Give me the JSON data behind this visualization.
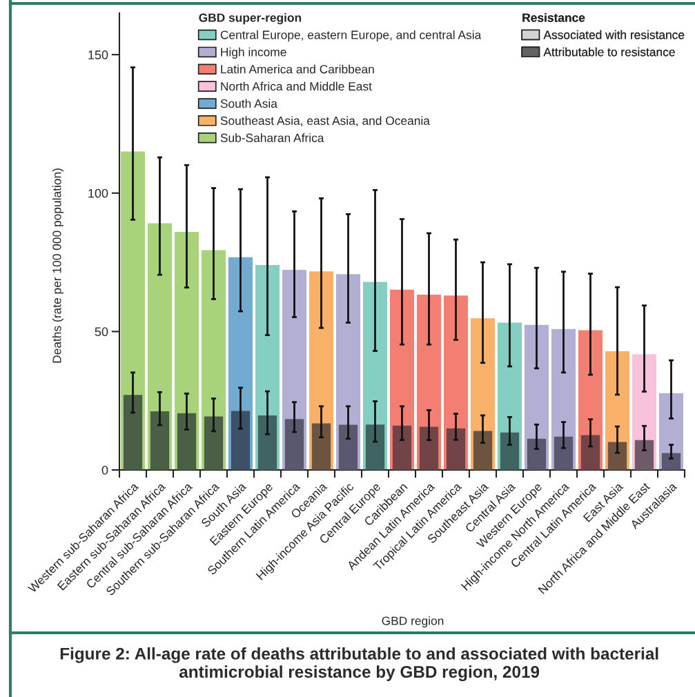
{
  "chart_data": {
    "type": "bar",
    "title": "Figure 2: All-age rate of deaths attributable to and associated with bacterial antimicrobial resistance by GBD region, 2019",
    "xlabel": "GBD region",
    "ylabel": "Deaths (rate per 100 000 population)",
    "legend_title": "GBD super-region",
    "annotations": [
      "Resistance"
    ],
    "legend": "top",
    "categories": [
      "Western sub-Saharan Africa",
      "Eastern sub-Saharan Africa",
      "Central sub-Saharan Africa",
      "Southern sub-Saharan Africa",
      "South Asia",
      "Eastern Europe",
      "Southern Latin America",
      "Oceania",
      "High-income Asia Pacific",
      "Central Europe",
      "Caribbean",
      "Andean Latin America",
      "Tropical Latin America",
      "Southeast Asia",
      "Central Asia",
      "Western Europe",
      "High-income North America",
      "Central Latin America",
      "East Asia",
      "North Africa and Middle East",
      "Australasia"
    ],
    "ylim": [
      0,
      165
    ],
    "yticks": [
      0,
      50,
      100,
      150
    ],
    "series": [
      {
        "name": "Central Europe, eastern Europe, and central Asia",
        "color": "#84cfc2",
        "values": [
          null,
          null,
          null,
          null,
          null,
          74.0,
          null,
          null,
          null,
          67.9,
          null,
          null,
          null,
          null,
          53.2,
          null,
          null,
          null,
          null,
          null,
          null
        ],
        "errors": [
          null,
          null,
          null,
          null,
          null,
          [
            48.7,
            105.7
          ],
          null,
          null,
          null,
          [
            43.0,
            101.1
          ],
          null,
          null,
          null,
          null,
          [
            37.4,
            74.3
          ],
          null,
          null,
          null,
          null,
          null,
          null
        ]
      },
      {
        "name": "High income",
        "color": "#b2afd5",
        "values": [
          null,
          null,
          null,
          null,
          null,
          null,
          72.3,
          null,
          70.7,
          null,
          null,
          null,
          null,
          null,
          null,
          52.4,
          50.9,
          null,
          null,
          null,
          27.7
        ],
        "errors": [
          null,
          null,
          null,
          null,
          null,
          null,
          [
            55.2,
            93.4
          ],
          null,
          [
            53.2,
            92.4
          ],
          null,
          null,
          null,
          null,
          null,
          null,
          [
            36.7,
            73.0
          ],
          [
            35.2,
            71.6
          ],
          null,
          null,
          null,
          [
            18.6,
            39.6
          ]
        ]
      },
      {
        "name": "Latin America and Caribbean",
        "color": "#f37f73",
        "values": [
          null,
          null,
          null,
          null,
          null,
          null,
          null,
          null,
          null,
          null,
          65.1,
          63.3,
          63.0,
          null,
          null,
          null,
          null,
          50.5,
          null,
          null,
          null
        ],
        "errors": [
          null,
          null,
          null,
          null,
          null,
          null,
          null,
          null,
          null,
          null,
          [
            45.3,
            90.6
          ],
          [
            45.3,
            85.5
          ],
          [
            47.0,
            83.2
          ],
          null,
          null,
          null,
          null,
          [
            34.4,
            70.9
          ],
          null,
          null,
          null
        ]
      },
      {
        "name": "North Africa and Middle East",
        "color": "#f8c2dc",
        "values": [
          null,
          null,
          null,
          null,
          null,
          null,
          null,
          null,
          null,
          null,
          null,
          null,
          null,
          null,
          null,
          null,
          null,
          null,
          null,
          41.8,
          null
        ],
        "errors": [
          null,
          null,
          null,
          null,
          null,
          null,
          null,
          null,
          null,
          null,
          null,
          null,
          null,
          null,
          null,
          null,
          null,
          null,
          null,
          [
            28.3,
            59.4
          ],
          null
        ]
      },
      {
        "name": "South Asia",
        "color": "#72aad0",
        "values": [
          null,
          null,
          null,
          null,
          76.8,
          null,
          null,
          null,
          null,
          null,
          null,
          null,
          null,
          null,
          null,
          null,
          null,
          null,
          null,
          null,
          null
        ],
        "errors": [
          null,
          null,
          null,
          null,
          [
            57.3,
            101.4
          ],
          null,
          null,
          null,
          null,
          null,
          null,
          null,
          null,
          null,
          null,
          null,
          null,
          null,
          null,
          null,
          null
        ]
      },
      {
        "name": "Southeast Asia, east Asia, and Oceania",
        "color": "#f9b068",
        "values": [
          null,
          null,
          null,
          null,
          null,
          null,
          null,
          71.7,
          null,
          null,
          null,
          null,
          null,
          54.8,
          null,
          null,
          null,
          null,
          42.9,
          null,
          null
        ],
        "errors": [
          null,
          null,
          null,
          null,
          null,
          null,
          null,
          [
            51.3,
            98.1
          ],
          null,
          null,
          null,
          null,
          null,
          [
            38.7,
            75.0
          ],
          null,
          null,
          null,
          null,
          [
            27.2,
            66.0
          ],
          null,
          null
        ]
      },
      {
        "name": "Sub-Saharan Africa",
        "color": "#a8d37a",
        "values": [
          115.0,
          89.1,
          86.0,
          79.4,
          null,
          null,
          null,
          null,
          null,
          null,
          null,
          null,
          null,
          null,
          null,
          null,
          null,
          null,
          null,
          null,
          null
        ],
        "errors": [
          [
            90.4,
            145.4
          ],
          [
            70.5,
            112.9
          ],
          [
            65.9,
            110.1
          ],
          [
            61.7,
            101.8
          ],
          null,
          null,
          null,
          null,
          null,
          null,
          null,
          null,
          null,
          null,
          null,
          null,
          null,
          null,
          null,
          null,
          null
        ]
      },
      {
        "name": "Associated with resistance",
        "color": "#d3d3d3",
        "values": [
          null,
          null,
          null,
          null,
          null,
          null,
          null,
          null,
          null,
          null,
          null,
          null,
          null,
          null,
          null,
          null,
          null,
          null,
          null,
          null,
          null
        ]
      },
      {
        "name": "Attributable to resistance",
        "color": "#636363",
        "colors": [
          "#4b5e46",
          "#4b5e46",
          "#4b5e46",
          "#4b5e46",
          "#3c5068",
          "#3f6462",
          "#5a586f",
          "#6d5441",
          "#5a586f",
          "#3f6462",
          "#724347",
          "#724347",
          "#724347",
          "#6d5441",
          "#3f6462",
          "#5a586f",
          "#5a586f",
          "#724347",
          "#6d5441",
          "#6e5a69",
          "#5a586f"
        ],
        "values": [
          27.1,
          21.2,
          20.5,
          19.3,
          21.3,
          19.7,
          18.4,
          16.8,
          16.3,
          16.4,
          16.0,
          15.6,
          15.0,
          14.1,
          13.5,
          11.3,
          12.0,
          12.6,
          10.1,
          10.8,
          6.1
        ],
        "errors": [
          [
            20.7,
            35.2
          ],
          [
            16.2,
            28.1
          ],
          [
            14.6,
            27.6
          ],
          [
            14.0,
            25.8
          ],
          [
            14.9,
            29.7
          ],
          [
            12.9,
            28.4
          ],
          [
            13.7,
            24.5
          ],
          [
            11.8,
            23.0
          ],
          [
            11.3,
            23.0
          ],
          [
            10.2,
            24.8
          ],
          [
            10.8,
            23.0
          ],
          [
            10.8,
            21.6
          ],
          [
            10.9,
            20.3
          ],
          [
            9.8,
            19.7
          ],
          [
            9.1,
            19.1
          ],
          [
            7.6,
            16.4
          ],
          [
            7.9,
            17.3
          ],
          [
            8.5,
            18.3
          ],
          [
            6.2,
            15.7
          ],
          [
            7.1,
            15.9
          ],
          [
            4.1,
            9.1
          ]
        ]
      }
    ]
  }
}
